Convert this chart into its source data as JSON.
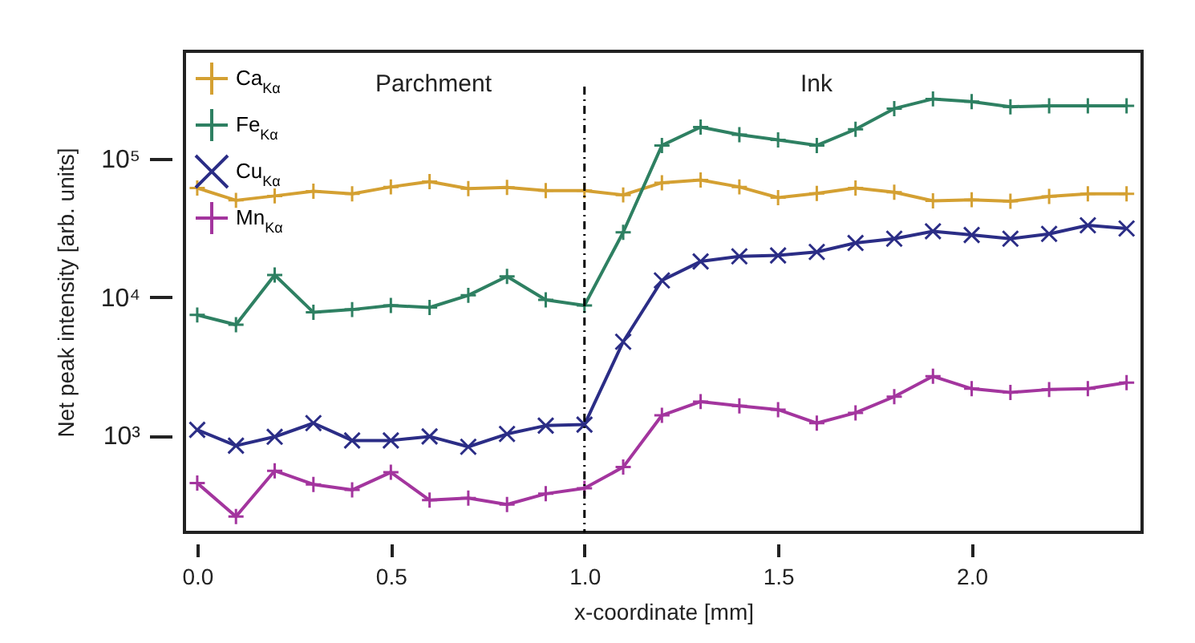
{
  "chart_data": {
    "type": "line",
    "xlabel": "x-coordinate [mm]",
    "ylabel": "Net peak intensity [arb. units]",
    "x": [
      0,
      0.1,
      0.2,
      0.3,
      0.4,
      0.5,
      0.6,
      0.7,
      0.8,
      0.9,
      1.0,
      1.1,
      1.2,
      1.3,
      1.4,
      1.5,
      1.6,
      1.7,
      1.8,
      1.9,
      2.0,
      2.1,
      2.2,
      2.3,
      2.4
    ],
    "series": [
      {
        "name": "Ca$_{Kα}$",
        "color": "#d4a032",
        "marker": "cross",
        "values": [
          61400,
          50000,
          53800,
          58200,
          55700,
          62500,
          68300,
          60800,
          62000,
          58800,
          58800,
          54700,
          67000,
          70200,
          62500,
          52300,
          56100,
          61400,
          57200,
          49600,
          50500,
          49200,
          53300,
          55700,
          55700
        ]
      },
      {
        "name": "Fe$_{Kα}$",
        "color": "#2e8062",
        "marker": "cross",
        "values": [
          7430,
          6320,
          14450,
          7760,
          8130,
          8710,
          8420,
          10300,
          14100,
          9550,
          8710,
          29400,
          124600,
          169000,
          149000,
          136500,
          124600,
          163000,
          230000,
          270000,
          258000,
          237000,
          241000,
          241000,
          241000
        ]
      },
      {
        "name": "Cu$_{Kα}$",
        "color": "#2b2d86",
        "marker": "x",
        "values": [
          1100,
          845,
          980,
          1230,
          922,
          922,
          985,
          830,
          1027,
          1180,
          1200,
          4760,
          13200,
          18100,
          19700,
          20000,
          21200,
          24600,
          26400,
          29900,
          28100,
          26400,
          28600,
          33000,
          31300
        ]
      },
      {
        "name": "Mn$_{Kα}$",
        "color": "#a3359e",
        "marker": "cross",
        "values": [
          454,
          260,
          557,
          444,
          405,
          543,
          342,
          354,
          318,
          380,
          416,
          592,
          1400,
          1760,
          1640,
          1540,
          1230,
          1460,
          1910,
          2680,
          2180,
          2050,
          2150,
          2180,
          2410
        ]
      }
    ],
    "log": "y",
    "xlim": [
      -0.033,
      2.44
    ],
    "ylim": [
      200,
      596000
    ],
    "xticks": [
      {
        "value": 0,
        "label": "0.0"
      },
      0.5,
      {
        "value": 1,
        "label": "1.0"
      },
      1.5,
      {
        "value": 2,
        "label": "2.0"
      }
    ],
    "yticks": [
      {
        "value": 1000,
        "label": "10³"
      },
      {
        "value": 10000,
        "label": "10⁴"
      },
      {
        "value": 100000,
        "label": "10⁵"
      }
    ],
    "ref_lines": [
      {
        "axis": "x",
        "value": 1.0,
        "line_style": "dashdot",
        "color": "#000000"
      }
    ],
    "annotations": [
      "Parchment",
      "Ink"
    ],
    "legend": "top left",
    "grid": false,
    "line_style": "solid"
  }
}
